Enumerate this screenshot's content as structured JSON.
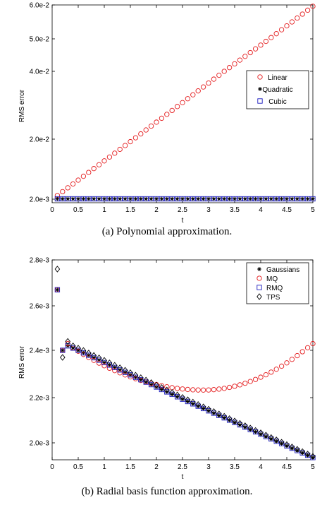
{
  "chart_data": [
    {
      "type": "scatter",
      "caption": "(a) Polynomial approximation.",
      "xlabel": "t",
      "ylabel": "RMS error",
      "xlim": [
        0,
        5
      ],
      "x_ticks": [
        "0",
        "0.5",
        "1",
        "1.5",
        "2",
        "2.5",
        "3",
        "3.5",
        "4",
        "4.5",
        "5"
      ],
      "y_ticks": [
        {
          "label": "2.0e-3",
          "value": 0.002
        },
        {
          "label": "2.0e-2",
          "value": 0.02
        },
        {
          "label": "4.0e-2",
          "value": 0.04
        },
        {
          "label": "5.0e-2",
          "value": 0.05
        },
        {
          "label": "6.0e-2",
          "value": 0.06
        }
      ],
      "legend_position": "right",
      "x": {
        "start": 0.1,
        "end": 5.0,
        "count": 50
      },
      "series": [
        {
          "name": "Linear",
          "marker": "circle",
          "color": "#e41a1c",
          "start": 0.0031,
          "end": 0.0596,
          "shape": "linear"
        },
        {
          "name": "Quadratic",
          "marker": "star",
          "color": "#000000",
          "start": 0.0021,
          "end": 0.0021,
          "shape": "linear"
        },
        {
          "name": "Cubic",
          "marker": "square",
          "color": "#1f1fbf",
          "start": 0.0021,
          "end": 0.0021,
          "shape": "linear"
        }
      ]
    },
    {
      "type": "scatter",
      "caption": "(b) Radial basis function approximation.",
      "xlabel": "t",
      "ylabel": "RMS error",
      "xlim": [
        0,
        5
      ],
      "x_ticks": [
        "0",
        "0.5",
        "1",
        "1.5",
        "2",
        "2.5",
        "3",
        "3.5",
        "4",
        "4.5",
        "5"
      ],
      "y_ticks": [
        {
          "label": "2.0e-3",
          "value": 0.002
        },
        {
          "label": "2.2e-3",
          "value": 0.0022
        },
        {
          "label": "2.4e-3",
          "value": 0.0024
        },
        {
          "label": "2.6e-3",
          "value": 0.0026
        },
        {
          "label": "2.8e-3",
          "value": 0.0028
        }
      ],
      "legend_position": "top-right",
      "x": {
        "start": 0.1,
        "end": 5.0,
        "count": 50
      },
      "series": [
        {
          "name": "Gaussians",
          "marker": "star",
          "color": "#000000",
          "shape": "decline",
          "early": [
            0.00267,
            0.0024,
            0.00242
          ],
          "start": 0.00241,
          "end": 0.001935
        },
        {
          "name": "MQ",
          "marker": "circle",
          "color": "#e41a1c",
          "shape": "parabola",
          "early": [
            0.00267,
            0.0024,
            0.00243
          ],
          "start": 0.00241,
          "vertex_x": 2.9,
          "vertex_y": 0.002232,
          "end": 0.00243
        },
        {
          "name": "RMQ",
          "marker": "square",
          "color": "#1f1fbf",
          "shape": "decline",
          "early": [
            0.00267,
            0.0024,
            0.00242
          ],
          "start": 0.00241,
          "end": 0.001935
        },
        {
          "name": "TPS",
          "marker": "diamond",
          "color": "#000000",
          "shape": "decline",
          "early": [
            0.00276,
            0.00237,
            0.00244
          ],
          "start": 0.00242,
          "end": 0.00194
        }
      ]
    }
  ]
}
